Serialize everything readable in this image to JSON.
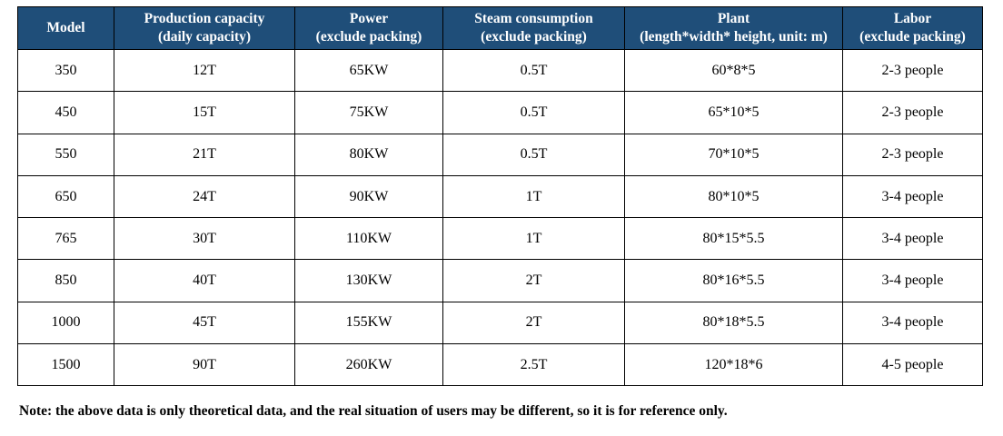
{
  "table": {
    "headers": [
      {
        "line1": "Model",
        "line2": ""
      },
      {
        "line1": "Production capacity",
        "line2": "(daily capacity)"
      },
      {
        "line1": "Power",
        "line2": "(exclude packing)"
      },
      {
        "line1": "Steam consumption",
        "line2": "(exclude packing)"
      },
      {
        "line1": "Plant",
        "line2": "(length*width* height, unit: m)"
      },
      {
        "line1": "Labor",
        "line2": "(exclude packing)"
      }
    ],
    "rows": [
      [
        "350",
        "12T",
        "65KW",
        "0.5T",
        "60*8*5",
        "2-3 people"
      ],
      [
        "450",
        "15T",
        "75KW",
        "0.5T",
        "65*10*5",
        "2-3 people"
      ],
      [
        "550",
        "21T",
        "80KW",
        "0.5T",
        "70*10*5",
        "2-3 people"
      ],
      [
        "650",
        "24T",
        "90KW",
        "1T",
        "80*10*5",
        "3-4 people"
      ],
      [
        "765",
        "30T",
        "110KW",
        "1T",
        "80*15*5.5",
        "3-4 people"
      ],
      [
        "850",
        "40T",
        "130KW",
        "2T",
        "80*16*5.5",
        "3-4 people"
      ],
      [
        "1000",
        "45T",
        "155KW",
        "2T",
        "80*18*5.5",
        "3-4 people"
      ],
      [
        "1500",
        "90T",
        "260KW",
        "2.5T",
        "120*18*6",
        "4-5 people"
      ]
    ]
  },
  "note": "Note: the above data is only theoretical data, and the real situation of users may be different, so it is for reference only.",
  "colors": {
    "header_background": "#1f4e79",
    "header_text": "#ffffff",
    "border": "#000000"
  }
}
